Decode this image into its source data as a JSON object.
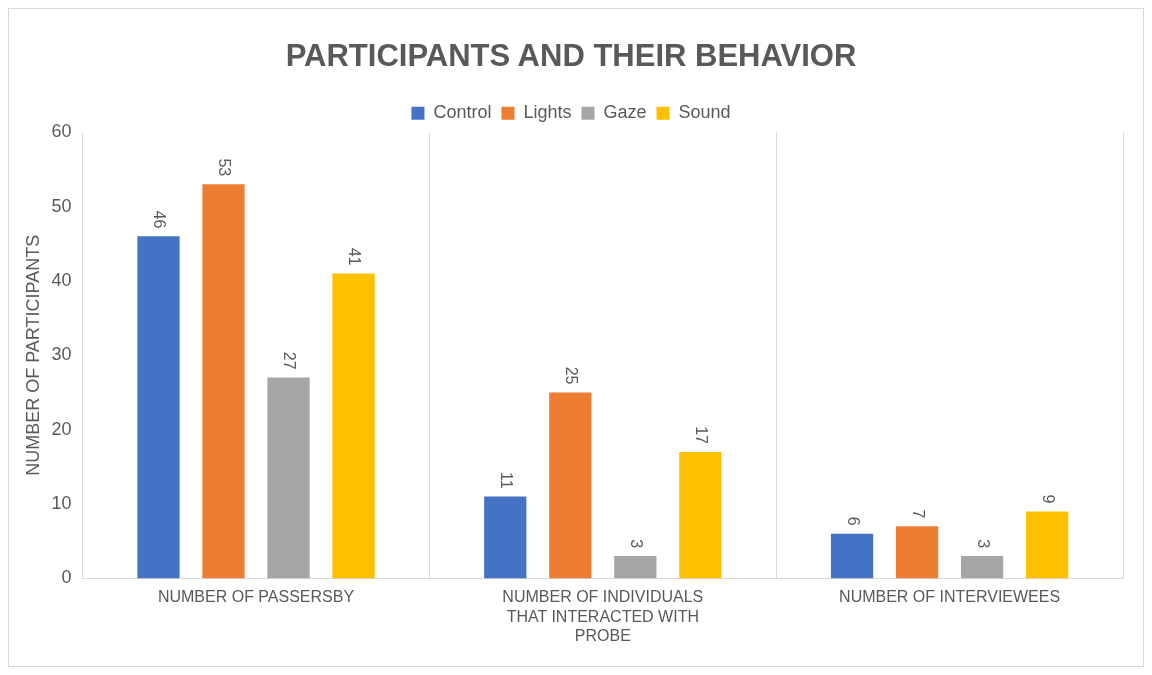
{
  "chart_data": {
    "type": "bar",
    "title": "PARTICIPANTS AND THEIR BEHAVIOR",
    "ylabel": "NUMBER OF PARTICIPANTS",
    "categories": [
      "NUMBER OF PASSERSBY",
      "NUMBER OF INDIVIDUALS THAT INTERACTED WITH PROBE",
      "NUMBER OF INTERVIEWEES"
    ],
    "series": [
      {
        "name": "Control",
        "color": "#4472c4",
        "values": [
          46,
          11,
          6
        ]
      },
      {
        "name": "Lights",
        "color": "#ed7d31",
        "values": [
          53,
          25,
          7
        ]
      },
      {
        "name": "Gaze",
        "color": "#a5a5a5",
        "values": [
          27,
          3,
          3
        ]
      },
      {
        "name": "Sound",
        "color": "#ffc000",
        "values": [
          41,
          17,
          9
        ]
      }
    ],
    "ylim": [
      0,
      60
    ],
    "yticks": [
      0,
      10,
      20,
      30,
      40,
      50,
      60
    ],
    "grid": "x",
    "legend": "top",
    "data_labels": true
  }
}
